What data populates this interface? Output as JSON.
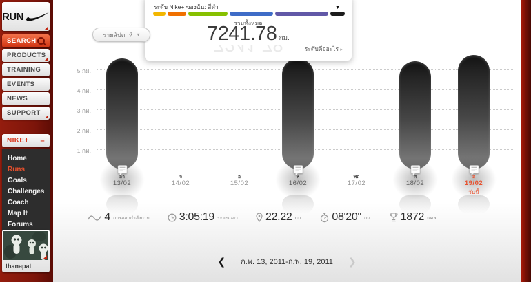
{
  "sidebar": {
    "logo_text": "RUN",
    "search": {
      "label": "SEARCH"
    },
    "nav_buttons": [
      {
        "label": "PRODUCTS",
        "has_submenu": true
      },
      {
        "label": "TRAINING",
        "has_submenu": false
      },
      {
        "label": "EVENTS",
        "has_submenu": false
      },
      {
        "label": "NEWS",
        "has_submenu": false
      },
      {
        "label": "SUPPORT",
        "has_submenu": true
      }
    ],
    "nikeplus_header": {
      "label": "NIKE+",
      "toggle": "–"
    },
    "menu": [
      {
        "label": "Home",
        "active": false
      },
      {
        "label": "Runs",
        "active": true
      },
      {
        "label": "Goals",
        "active": false
      },
      {
        "label": "Challenges",
        "active": false
      },
      {
        "label": "Coach",
        "active": false
      },
      {
        "label": "Map It",
        "active": false
      },
      {
        "label": "Forums",
        "active": false
      }
    ],
    "profile": {
      "username": "thanapat"
    }
  },
  "toolbar": {
    "period_label": "รายสัปดาห์",
    "caret": "▾"
  },
  "level_popup": {
    "title": "ระดับ Nike+ ของฉัน: สีดำ",
    "total_label": "รวมทั้งหมด",
    "total_value": "7241.78",
    "total_unit": "กม.",
    "link_label": "ระดับคืออะไร",
    "link_arrow": "▸",
    "marker_glyph": "▼",
    "marker_on": "black",
    "segments": [
      {
        "name": "yellow",
        "color": "#f2b600",
        "width": 18
      },
      {
        "name": "orange",
        "color": "#f07000",
        "width": 27
      },
      {
        "name": "green",
        "color": "#86c000",
        "width": 57
      },
      {
        "name": "blue",
        "color": "#3e6cc7",
        "width": 63
      },
      {
        "name": "purple",
        "color": "#6158a7",
        "width": 77
      },
      {
        "name": "black",
        "color": "#1c1c1c",
        "width": 21
      }
    ]
  },
  "chart_data": {
    "type": "bar",
    "unit": "กม.",
    "categories": [
      "13/02",
      "14/02",
      "15/02",
      "16/02",
      "17/02",
      "18/02",
      "19/02"
    ],
    "day_letters": [
      "อา",
      "จ",
      "อ",
      "พ",
      "พฤ",
      "ศ",
      "ส"
    ],
    "values": [
      5.55,
      0,
      0,
      5.55,
      0,
      5.4,
      5.72
    ],
    "has_note": [
      true,
      false,
      false,
      true,
      false,
      true,
      true
    ],
    "yticks": [
      {
        "label": "5 กม.",
        "value": 5
      },
      {
        "label": "4 กม.",
        "value": 4
      },
      {
        "label": "3 กม.",
        "value": 3
      },
      {
        "label": "2 กม.",
        "value": 2
      },
      {
        "label": "1 กม.",
        "value": 1
      }
    ],
    "ylim": [
      0,
      5.8
    ],
    "grid": "dotted",
    "today_index": 6,
    "today_label": "วันนี้"
  },
  "stats": [
    {
      "name": "workouts",
      "icon": "pulse-icon",
      "value": "4",
      "unit": "การออกกำลังกาย"
    },
    {
      "name": "duration",
      "icon": "clock-icon",
      "value": "3:05:19",
      "unit": "ระยะเวลา"
    },
    {
      "name": "distance",
      "icon": "pin-icon",
      "value": "22.22",
      "unit": "กม."
    },
    {
      "name": "pace",
      "icon": "stopwatch-icon",
      "value": "08'20\"",
      "unit": "กม."
    },
    {
      "name": "calories",
      "icon": "trophy-icon",
      "value": "1872",
      "unit": "แคล"
    }
  ],
  "date_nav": {
    "prev_glyph": "❮",
    "label": "ก.พ. 13, 2011-ก.พ. 19, 2011",
    "next_glyph": "❯"
  },
  "colors": {
    "sidebar_red": "#8e190d",
    "accent_red": "#d9341b",
    "today_red": "#e8502d"
  }
}
